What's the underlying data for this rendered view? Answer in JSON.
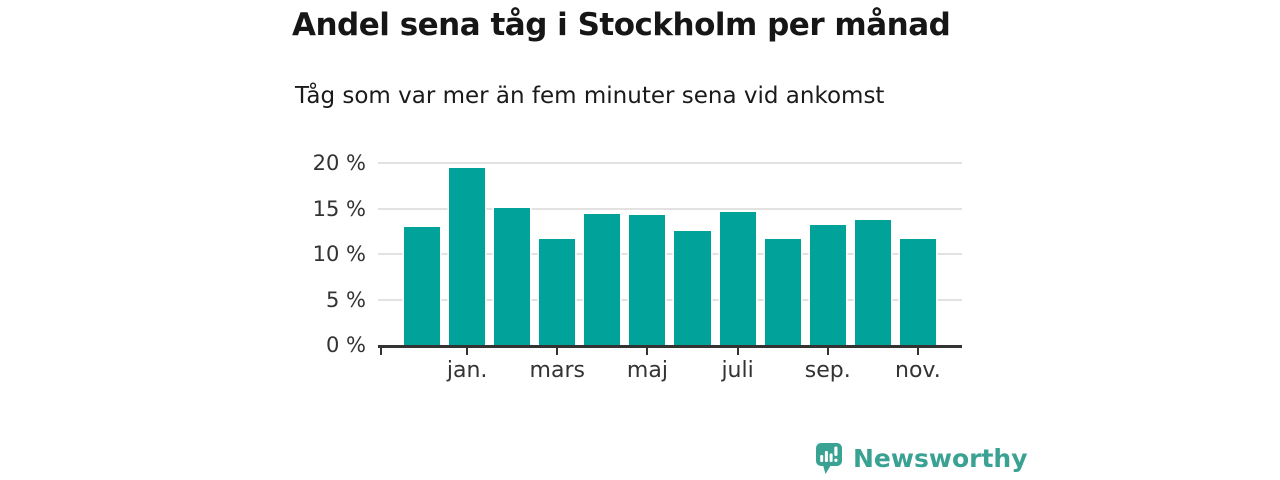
{
  "chart_data": {
    "type": "bar",
    "title": "Andel sena tåg i Stockholm per månad",
    "subtitle": "Tåg som var mer än fem minuter sena vid ankomst",
    "xlabel": "",
    "ylabel": "",
    "unit": "%",
    "ylim": [
      0,
      20
    ],
    "grid": "horizontal",
    "legend": null,
    "y_tick_labels": [
      "20 %",
      "15 %",
      "10 %",
      "5 %",
      "0 %"
    ],
    "x_tick_labels": [
      "jan.",
      "mars",
      "maj",
      "juli",
      "sep.",
      "nov."
    ],
    "bars": [
      {
        "label": "",
        "value": 13.0
      },
      {
        "label": "jan.",
        "value": 19.5
      },
      {
        "label": "",
        "value": 15.1
      },
      {
        "label": "mars",
        "value": 11.6
      },
      {
        "label": "",
        "value": 14.4
      },
      {
        "label": "maj",
        "value": 14.3
      },
      {
        "label": "",
        "value": 12.5
      },
      {
        "label": "juli",
        "value": 14.6
      },
      {
        "label": "",
        "value": 11.7
      },
      {
        "label": "sep.",
        "value": 13.2
      },
      {
        "label": "",
        "value": 13.7
      },
      {
        "label": "nov.",
        "value": 11.7
      }
    ]
  },
  "colors": {
    "bar": "#00a29a",
    "logo": "#3aa293",
    "axis": "#333333",
    "grid": "#e2e2e2",
    "text": "#161616"
  },
  "branding": {
    "logo_text": "Newsworthy"
  }
}
